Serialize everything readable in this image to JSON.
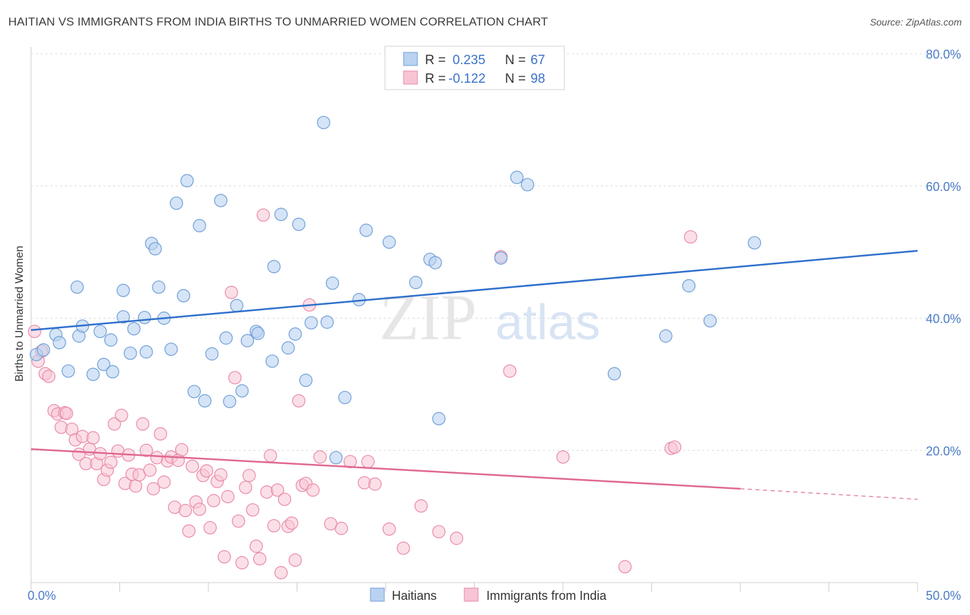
{
  "title": "HAITIAN VS IMMIGRANTS FROM INDIA BIRTHS TO UNMARRIED WOMEN CORRELATION CHART",
  "source": "Source: ZipAtlas.com",
  "watermark_zip": "ZIP",
  "watermark_atlas": "atlas",
  "colors": {
    "blue_fill": "#b9d2f0",
    "blue_stroke": "#6f9fd8",
    "blue_line": "#2f6fcc",
    "pink_fill": "#f7c4d4",
    "pink_stroke": "#e98aa9",
    "pink_line": "#e06891",
    "tick_text": "#4a7cc7",
    "grid": "#d9d9d9"
  },
  "legend": {
    "r_label": "R =",
    "n_label": "N =",
    "rows": [
      {
        "r": "0.235",
        "n": "67"
      },
      {
        "r": "-0.122",
        "n": "98"
      }
    ]
  },
  "chart_data": {
    "type": "scatter",
    "title": "HAITIAN VS IMMIGRANTS FROM INDIA BIRTHS TO UNMARRIED WOMEN CORRELATION CHART",
    "xlabel": "",
    "ylabel": "Births to Unmarried Women",
    "xlim": [
      0,
      50
    ],
    "ylim": [
      0,
      80
    ],
    "x_tick_labels": [
      "0.0%",
      "50.0%"
    ],
    "y_tick_labels": [
      "20.0%",
      "40.0%",
      "60.0%",
      "80.0%"
    ],
    "y_ticks": [
      20,
      40,
      60,
      80
    ],
    "legend_placement": "top-center",
    "series": [
      {
        "name": "Haitians",
        "trend": {
          "x": [
            0,
            50
          ],
          "y": [
            38.2,
            50.2
          ]
        },
        "points": [
          [
            0.3,
            34.5
          ],
          [
            0.7,
            35.2
          ],
          [
            1.4,
            37.5
          ],
          [
            1.6,
            36.3
          ],
          [
            2.1,
            32.0
          ],
          [
            2.6,
            44.7
          ],
          [
            2.7,
            37.3
          ],
          [
            2.9,
            38.8
          ],
          [
            3.5,
            31.5
          ],
          [
            3.9,
            38.0
          ],
          [
            4.1,
            33.0
          ],
          [
            4.5,
            36.7
          ],
          [
            4.6,
            31.9
          ],
          [
            5.2,
            44.2
          ],
          [
            5.2,
            40.2
          ],
          [
            5.6,
            34.7
          ],
          [
            5.8,
            38.4
          ],
          [
            6.4,
            40.1
          ],
          [
            6.5,
            34.9
          ],
          [
            6.8,
            51.3
          ],
          [
            7.0,
            50.5
          ],
          [
            7.2,
            44.7
          ],
          [
            7.5,
            40.0
          ],
          [
            7.9,
            35.3
          ],
          [
            8.2,
            57.4
          ],
          [
            8.6,
            43.4
          ],
          [
            8.8,
            60.8
          ],
          [
            9.2,
            28.9
          ],
          [
            9.5,
            54.0
          ],
          [
            9.8,
            27.5
          ],
          [
            10.2,
            34.6
          ],
          [
            10.7,
            57.8
          ],
          [
            11.0,
            37.0
          ],
          [
            11.2,
            27.4
          ],
          [
            11.6,
            41.9
          ],
          [
            11.9,
            29.0
          ],
          [
            12.2,
            36.6
          ],
          [
            12.7,
            38.0
          ],
          [
            12.8,
            37.7
          ],
          [
            13.6,
            33.5
          ],
          [
            13.7,
            47.8
          ],
          [
            14.1,
            55.7
          ],
          [
            14.5,
            35.5
          ],
          [
            14.9,
            37.6
          ],
          [
            15.1,
            54.2
          ],
          [
            15.5,
            30.6
          ],
          [
            15.8,
            39.3
          ],
          [
            16.5,
            69.6
          ],
          [
            16.7,
            39.4
          ],
          [
            17.0,
            45.3
          ],
          [
            17.2,
            18.9
          ],
          [
            17.7,
            28.0
          ],
          [
            18.5,
            42.8
          ],
          [
            18.9,
            53.3
          ],
          [
            20.2,
            51.5
          ],
          [
            21.7,
            45.4
          ],
          [
            22.5,
            48.9
          ],
          [
            22.8,
            48.4
          ],
          [
            23.0,
            24.8
          ],
          [
            26.5,
            49.1
          ],
          [
            27.4,
            61.3
          ],
          [
            28.0,
            60.2
          ],
          [
            32.9,
            31.6
          ],
          [
            35.8,
            37.3
          ],
          [
            37.1,
            44.9
          ],
          [
            38.3,
            39.6
          ],
          [
            40.8,
            51.4
          ]
        ]
      },
      {
        "name": "Immigrants from India",
        "trend": {
          "x": [
            0,
            40
          ],
          "y": [
            20.2,
            14.2
          ]
        },
        "trend_dashed": {
          "x": [
            40,
            50
          ],
          "y": [
            14.2,
            12.6
          ]
        },
        "points": [
          [
            0.2,
            38.0
          ],
          [
            0.4,
            33.5
          ],
          [
            0.6,
            35.0
          ],
          [
            0.8,
            31.6
          ],
          [
            1.0,
            31.2
          ],
          [
            1.3,
            26.0
          ],
          [
            1.5,
            25.5
          ],
          [
            1.7,
            23.5
          ],
          [
            1.9,
            25.7
          ],
          [
            2.0,
            25.6
          ],
          [
            2.3,
            23.2
          ],
          [
            2.5,
            21.6
          ],
          [
            2.7,
            19.4
          ],
          [
            2.9,
            22.1
          ],
          [
            3.1,
            18.0
          ],
          [
            3.3,
            20.2
          ],
          [
            3.5,
            21.9
          ],
          [
            3.7,
            18.0
          ],
          [
            3.9,
            19.5
          ],
          [
            4.1,
            15.6
          ],
          [
            4.3,
            17.0
          ],
          [
            4.5,
            18.2
          ],
          [
            4.7,
            24.0
          ],
          [
            4.9,
            19.9
          ],
          [
            5.1,
            25.3
          ],
          [
            5.3,
            15.0
          ],
          [
            5.5,
            19.3
          ],
          [
            5.7,
            16.4
          ],
          [
            5.9,
            14.6
          ],
          [
            6.1,
            16.3
          ],
          [
            6.3,
            24.0
          ],
          [
            6.5,
            20.0
          ],
          [
            6.7,
            17.0
          ],
          [
            6.9,
            14.2
          ],
          [
            7.1,
            18.9
          ],
          [
            7.3,
            22.5
          ],
          [
            7.5,
            15.2
          ],
          [
            7.7,
            18.4
          ],
          [
            7.9,
            19.0
          ],
          [
            8.1,
            11.4
          ],
          [
            8.3,
            18.5
          ],
          [
            8.5,
            20.1
          ],
          [
            8.7,
            10.9
          ],
          [
            8.9,
            7.8
          ],
          [
            9.1,
            17.6
          ],
          [
            9.3,
            12.2
          ],
          [
            9.5,
            11.1
          ],
          [
            9.7,
            16.2
          ],
          [
            9.9,
            16.9
          ],
          [
            10.1,
            8.3
          ],
          [
            10.3,
            12.4
          ],
          [
            10.5,
            15.3
          ],
          [
            10.7,
            16.3
          ],
          [
            10.9,
            3.9
          ],
          [
            11.1,
            13.0
          ],
          [
            11.3,
            43.9
          ],
          [
            11.5,
            31.0
          ],
          [
            11.7,
            9.3
          ],
          [
            11.9,
            3.0
          ],
          [
            12.1,
            14.4
          ],
          [
            12.3,
            16.2
          ],
          [
            12.5,
            11.0
          ],
          [
            12.7,
            5.5
          ],
          [
            12.9,
            3.6
          ],
          [
            13.1,
            55.6
          ],
          [
            13.3,
            13.7
          ],
          [
            13.5,
            19.2
          ],
          [
            13.7,
            8.6
          ],
          [
            13.9,
            14.0
          ],
          [
            14.1,
            1.5
          ],
          [
            14.3,
            12.6
          ],
          [
            14.5,
            8.5
          ],
          [
            14.7,
            9.0
          ],
          [
            14.9,
            3.4
          ],
          [
            15.1,
            27.5
          ],
          [
            15.3,
            14.7
          ],
          [
            15.5,
            15.0
          ],
          [
            15.7,
            42.0
          ],
          [
            17.5,
            8.2
          ],
          [
            18.0,
            18.3
          ],
          [
            19.0,
            18.3
          ],
          [
            20.2,
            8.1
          ],
          [
            21.0,
            5.2
          ],
          [
            22.0,
            11.6
          ],
          [
            23.0,
            7.7
          ],
          [
            24.0,
            6.7
          ],
          [
            26.5,
            49.3
          ],
          [
            27.0,
            32.0
          ],
          [
            30.0,
            19.0
          ],
          [
            33.5,
            2.4
          ],
          [
            36.1,
            20.3
          ],
          [
            36.3,
            20.5
          ],
          [
            37.2,
            52.3
          ],
          [
            15.9,
            14.0
          ],
          [
            16.3,
            19.0
          ],
          [
            16.9,
            8.9
          ],
          [
            18.8,
            15.1
          ],
          [
            19.4,
            14.9
          ]
        ]
      }
    ]
  },
  "bottom_legend": {
    "items": [
      "Haitians",
      "Immigrants from India"
    ]
  }
}
